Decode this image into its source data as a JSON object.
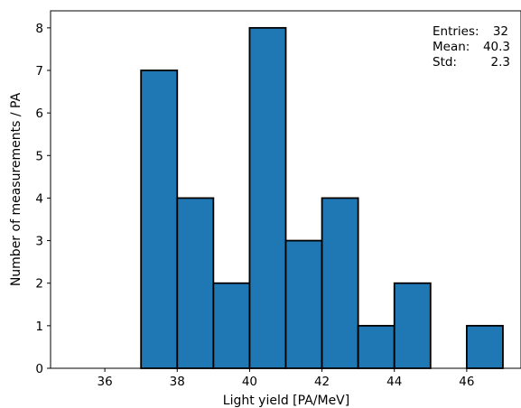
{
  "chart_data": {
    "type": "bar",
    "subtype": "histogram",
    "bin_edges": [
      35,
      36,
      37,
      38,
      39,
      40,
      41,
      42,
      43,
      44,
      45,
      46,
      47
    ],
    "values": [
      0,
      0,
      7,
      4,
      2,
      8,
      3,
      4,
      1,
      2,
      0,
      1
    ],
    "xlabel": "Light yield [PA/MeV]",
    "ylabel": "Number of measurements / PA",
    "xlim": [
      34.5,
      47.5
    ],
    "ylim": [
      0,
      8.4
    ],
    "xticks": [
      36,
      38,
      40,
      42,
      44,
      46
    ],
    "yticks": [
      0,
      1,
      2,
      3,
      4,
      5,
      6,
      7,
      8
    ],
    "grid": false,
    "colors": {
      "bar_fill": "#1f77b4",
      "bar_edge": "#000000"
    },
    "stats_box": {
      "entries_label": "Entries:",
      "entries_value": "32",
      "mean_label": "Mean:",
      "mean_value": "40.3",
      "std_label": "Std:",
      "std_value": "2.3"
    }
  }
}
